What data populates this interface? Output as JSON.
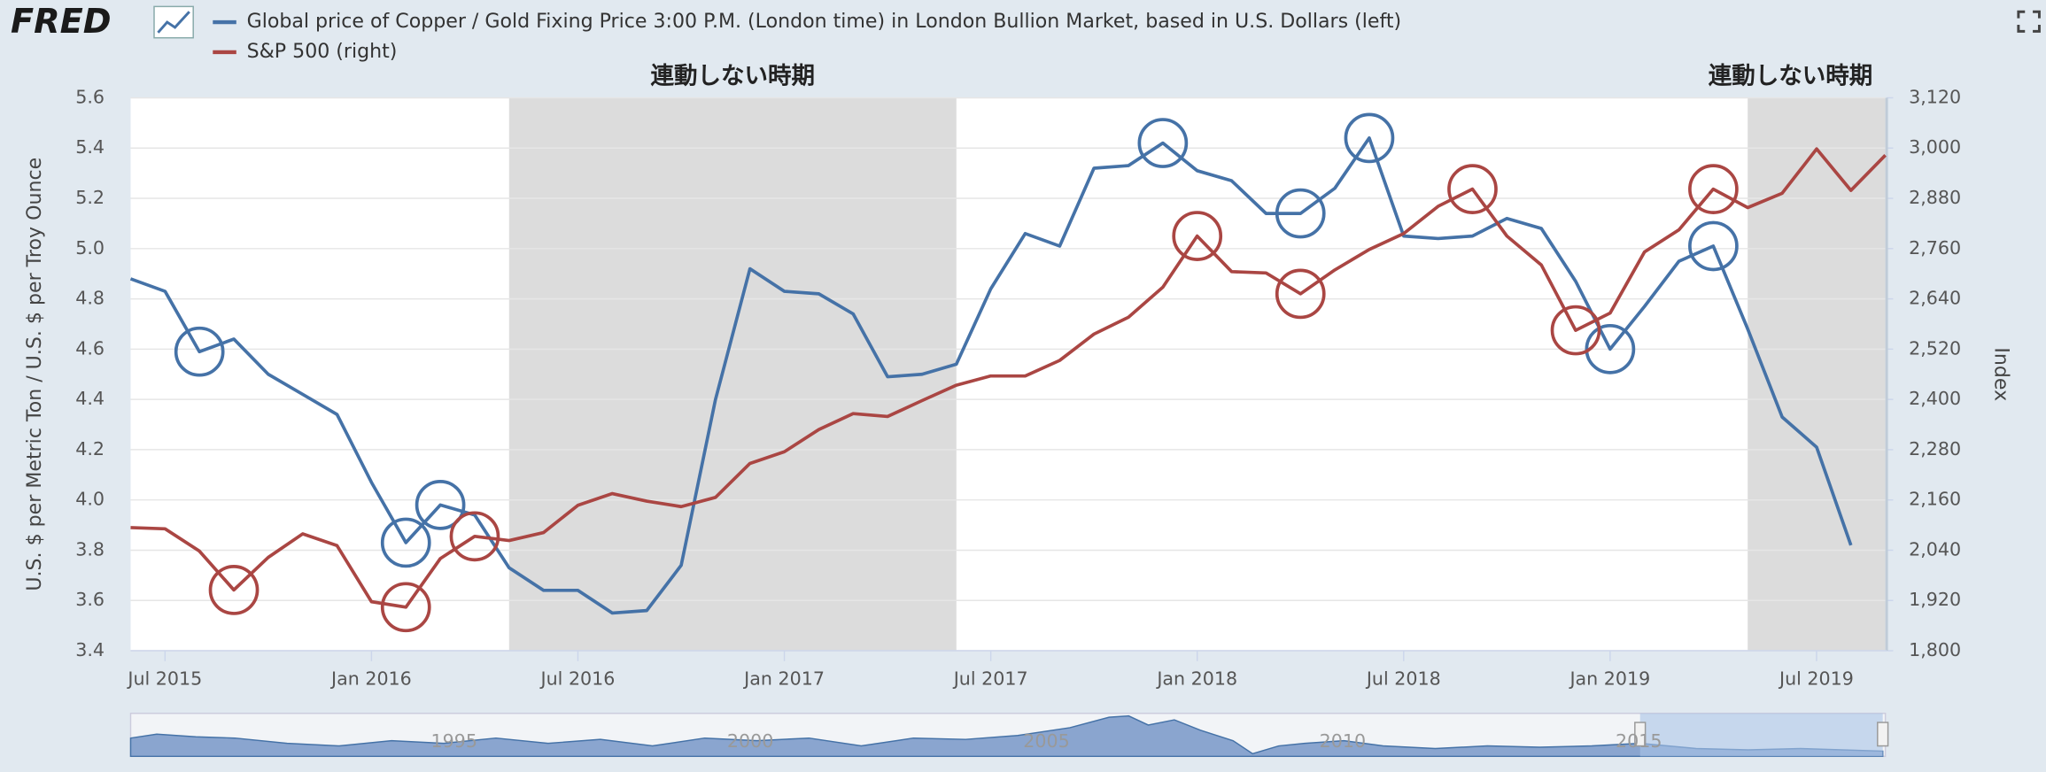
{
  "logo": "FRED",
  "chart_data": {
    "type": "line",
    "ylabel": "U.S. $ per Metric Ton / U.S. $ per Troy Ounce",
    "y2label": "Index",
    "x": [
      "2015-06",
      "2015-07",
      "2015-08",
      "2015-09",
      "2015-10",
      "2015-11",
      "2015-12",
      "2016-01",
      "2016-02",
      "2016-03",
      "2016-04",
      "2016-05",
      "2016-06",
      "2016-07",
      "2016-08",
      "2016-09",
      "2016-10",
      "2016-11",
      "2016-12",
      "2017-01",
      "2017-02",
      "2017-03",
      "2017-04",
      "2017-05",
      "2017-06",
      "2017-07",
      "2017-08",
      "2017-09",
      "2017-10",
      "2017-11",
      "2017-12",
      "2018-01",
      "2018-02",
      "2018-03",
      "2018-04",
      "2018-05",
      "2018-06",
      "2018-07",
      "2018-08",
      "2018-09",
      "2018-10",
      "2018-11",
      "2018-12",
      "2019-01",
      "2019-02",
      "2019-03",
      "2019-04",
      "2019-05",
      "2019-06",
      "2019-07",
      "2019-08",
      "2019-09"
    ],
    "series": [
      {
        "name": "Global price of Copper / Gold Fixing Price 3:00 P.M. (London time) in London Bullion Market, based in U.S. Dollars (left)",
        "color": "#4572a7",
        "axis": "y",
        "values": [
          4.88,
          4.83,
          4.59,
          4.64,
          4.5,
          4.42,
          4.34,
          4.07,
          3.83,
          3.98,
          3.94,
          3.73,
          3.64,
          3.64,
          3.55,
          3.56,
          3.74,
          4.4,
          4.92,
          4.83,
          4.82,
          4.74,
          4.49,
          4.5,
          4.54,
          4.84,
          5.06,
          5.01,
          5.32,
          5.33,
          5.42,
          5.31,
          5.27,
          5.14,
          5.14,
          5.24,
          5.44,
          5.05,
          5.04,
          5.05,
          5.12,
          5.08,
          4.87,
          4.6,
          4.77,
          4.95,
          5.01,
          4.68,
          4.33,
          4.21,
          3.82,
          null
        ]
      },
      {
        "name": "S&P 500 (right)",
        "color": "#aa4643",
        "axis": "y2",
        "values": [
          2094,
          2091,
          2038,
          1945,
          2023,
          2079,
          2051,
          1917,
          1904,
          2020,
          2073,
          2063,
          2082,
          2147,
          2175,
          2157,
          2144,
          2166,
          2247,
          2275,
          2328,
          2366,
          2359,
          2397,
          2434,
          2456,
          2456,
          2493,
          2556,
          2596,
          2668,
          2790,
          2705,
          2702,
          2652,
          2709,
          2758,
          2796,
          2861,
          2902,
          2790,
          2721,
          2565,
          2606,
          2752,
          2805,
          2902,
          2858,
          2892,
          2998,
          2899,
          2983
        ]
      }
    ],
    "xlim": [
      "2015-06",
      "2019-09"
    ],
    "xticks": [
      {
        "value": "2015-07",
        "label": "Jul 2015"
      },
      {
        "value": "2016-01",
        "label": "Jan 2016"
      },
      {
        "value": "2016-07",
        "label": "Jul 2016"
      },
      {
        "value": "2017-01",
        "label": "Jan 2017"
      },
      {
        "value": "2017-07",
        "label": "Jul 2017"
      },
      {
        "value": "2018-01",
        "label": "Jan 2018"
      },
      {
        "value": "2018-07",
        "label": "Jul 2018"
      },
      {
        "value": "2019-01",
        "label": "Jan 2019"
      },
      {
        "value": "2019-07",
        "label": "Jul 2019"
      }
    ],
    "ylim": [
      3.4,
      5.6
    ],
    "yticks": [
      3.4,
      3.6,
      3.8,
      {
        "value": 4,
        "label": "4.0"
      },
      4.2,
      4.4,
      4.6,
      4.8,
      {
        "value": 5,
        "label": "5.0"
      },
      5.2,
      5.4,
      5.6
    ],
    "y2lim": [
      1800,
      3120
    ],
    "y2ticks": [
      {
        "value": 1800,
        "label": "1,800"
      },
      {
        "value": 1920,
        "label": "1,920"
      },
      {
        "value": 2040,
        "label": "2,040"
      },
      {
        "value": 2160,
        "label": "2,160"
      },
      {
        "value": 2280,
        "label": "2,280"
      },
      {
        "value": 2400,
        "label": "2,400"
      },
      {
        "value": 2520,
        "label": "2,520"
      },
      {
        "value": 2640,
        "label": "2,640"
      },
      {
        "value": 2760,
        "label": "2,760"
      },
      {
        "value": 2880,
        "label": "2,880"
      },
      {
        "value": 3000,
        "label": "3,000"
      },
      {
        "value": 3120,
        "label": "3,120"
      }
    ],
    "grid": true,
    "shaded_periods": [
      {
        "start": "2016-05",
        "end": "2017-06",
        "label": "連動しない時期"
      },
      {
        "start": "2019-05",
        "end": "2019-09",
        "label": "連動しない時期"
      }
    ]
  },
  "navigator": {
    "labels": [
      "1995",
      "2000",
      "2005",
      "2010",
      "2015"
    ]
  }
}
